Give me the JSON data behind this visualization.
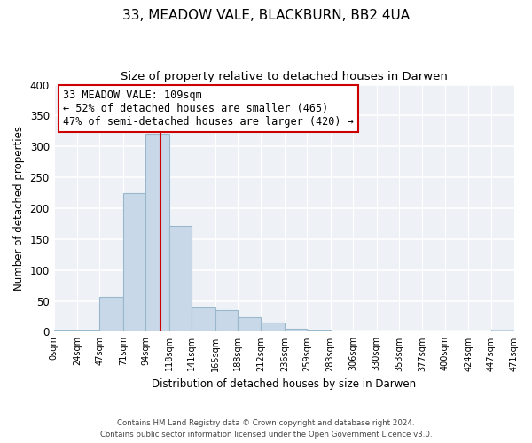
{
  "title1": "33, MEADOW VALE, BLACKBURN, BB2 4UA",
  "title2": "Size of property relative to detached houses in Darwen",
  "xlabel": "Distribution of detached houses by size in Darwen",
  "ylabel": "Number of detached properties",
  "bin_edges": [
    0,
    24,
    47,
    71,
    94,
    118,
    141,
    165,
    188,
    212,
    236,
    259,
    283,
    306,
    330,
    353,
    377,
    400,
    424,
    447,
    471
  ],
  "bar_heights": [
    2,
    2,
    57,
    224,
    320,
    172,
    39,
    35,
    24,
    15,
    5,
    2,
    0,
    0,
    0,
    0,
    0,
    0,
    0,
    3
  ],
  "bar_color": "#c8d8e8",
  "bar_edge_color": "#9ab8cc",
  "vline_x": 109,
  "vline_color": "#cc0000",
  "annotation_line1": "33 MEADOW VALE: 109sqm",
  "annotation_line2": "← 52% of detached houses are smaller (465)",
  "annotation_line3": "47% of semi-detached houses are larger (420) →",
  "annotation_box_color": "#ffffff",
  "annotation_box_edge_color": "#cc0000",
  "tick_labels": [
    "0sqm",
    "24sqm",
    "47sqm",
    "71sqm",
    "94sqm",
    "118sqm",
    "141sqm",
    "165sqm",
    "188sqm",
    "212sqm",
    "236sqm",
    "259sqm",
    "283sqm",
    "306sqm",
    "330sqm",
    "353sqm",
    "377sqm",
    "400sqm",
    "424sqm",
    "447sqm",
    "471sqm"
  ],
  "ylim": [
    0,
    400
  ],
  "yticks": [
    0,
    50,
    100,
    150,
    200,
    250,
    300,
    350,
    400
  ],
  "bg_color": "#eef2f7",
  "footnote": "Contains HM Land Registry data © Crown copyright and database right 2024.\nContains public sector information licensed under the Open Government Licence v3.0."
}
